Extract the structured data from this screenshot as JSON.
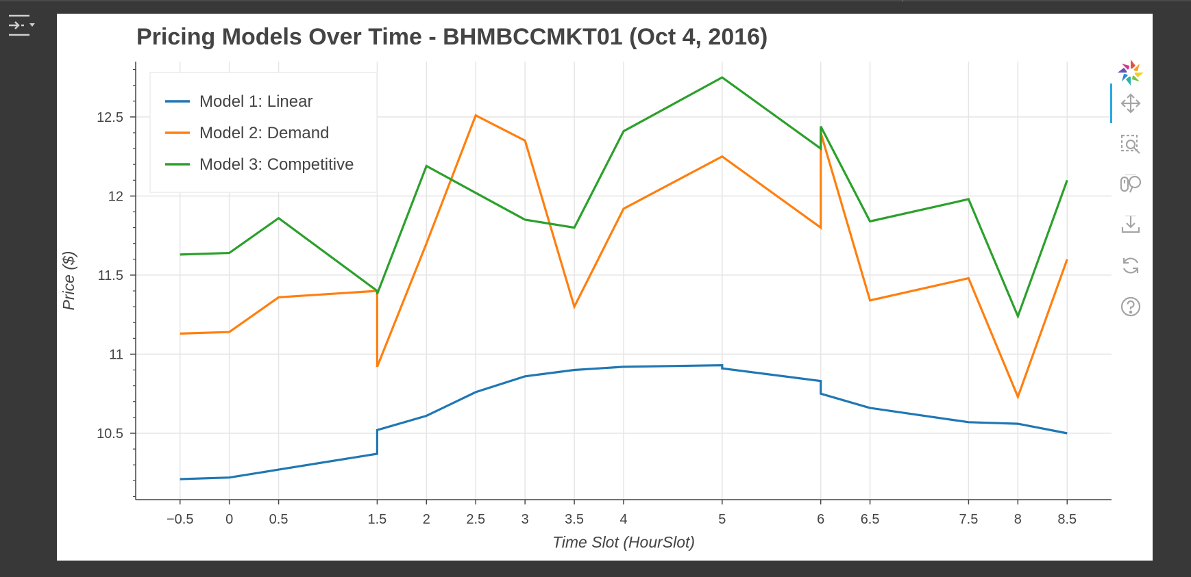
{
  "colors": {
    "background": "#383838",
    "card": "#ffffff",
    "grid": "#e5e5e5",
    "axis": "#444444",
    "linear": "#1f77b4",
    "demand": "#ff7f0e",
    "competitive": "#2ca02c",
    "toolbar_icon": "#a4a4a4",
    "toolbar_active": "#26aae1"
  },
  "sidebar_toggle": {
    "icon": "collapse-panel-icon"
  },
  "toolbar": {
    "tools": [
      {
        "name": "bokeh-logo",
        "icon": "bokeh-logo-icon"
      },
      {
        "name": "pan",
        "icon": "pan-icon",
        "active": true
      },
      {
        "name": "box-zoom",
        "icon": "box-zoom-icon"
      },
      {
        "name": "wheel-zoom",
        "icon": "wheel-zoom-icon"
      },
      {
        "name": "save",
        "icon": "save-icon"
      },
      {
        "name": "reset",
        "icon": "reset-icon"
      },
      {
        "name": "help",
        "icon": "help-icon"
      }
    ]
  },
  "chart_data": {
    "type": "line",
    "title": "Pricing Models Over Time - BHMBCCMKT01 (Oct 4, 2016)",
    "xlabel": "Time Slot (HourSlot)",
    "ylabel": "Price ($)",
    "xlim": [
      -0.95,
      8.95
    ],
    "ylim": [
      10.08,
      12.85
    ],
    "x_ticks": [
      -0.5,
      0,
      0.5,
      1.5,
      2,
      2.5,
      3,
      3.5,
      4,
      5,
      6,
      6.5,
      7.5,
      8,
      8.5
    ],
    "x_tick_labels": [
      "−0.5",
      "0",
      "0.5",
      "1.5",
      "2",
      "2.5",
      "3",
      "3.5",
      "4",
      "5",
      "6",
      "6.5",
      "7.5",
      "8",
      "8.5"
    ],
    "y_ticks": [
      10.5,
      11,
      11.5,
      12,
      12.5
    ],
    "y_tick_labels": [
      "10.5",
      "11",
      "11.5",
      "12",
      "12.5"
    ],
    "y_minor_step": 0.1,
    "grid": true,
    "legend_position": "top-left",
    "series": [
      {
        "name": "Model 1: Linear",
        "x": [
          -0.5,
          0,
          0.5,
          1.5,
          1.5,
          2,
          2.5,
          3,
          3.5,
          4,
          5,
          5,
          6,
          6,
          6.5,
          7.5,
          8,
          8.5
        ],
        "y": [
          10.21,
          10.22,
          10.27,
          10.37,
          10.52,
          10.61,
          10.76,
          10.86,
          10.9,
          10.92,
          10.93,
          10.91,
          10.83,
          10.75,
          10.66,
          10.57,
          10.56,
          10.5
        ]
      },
      {
        "name": "Model 2: Demand",
        "x": [
          -0.5,
          0,
          0.5,
          1.5,
          1.5,
          2,
          2.5,
          3,
          3.5,
          4,
          5,
          6,
          6,
          6.5,
          7.5,
          8,
          8.5
        ],
        "y": [
          11.13,
          11.14,
          11.36,
          11.4,
          10.92,
          11.7,
          12.51,
          12.35,
          11.3,
          11.92,
          12.25,
          11.8,
          12.4,
          11.34,
          11.48,
          10.73,
          11.6
        ]
      },
      {
        "name": "Model 3: Competitive",
        "x": [
          -0.5,
          0,
          0.5,
          1.5,
          1.5,
          2,
          2.5,
          3,
          3.5,
          4,
          5,
          6,
          6,
          6.5,
          7.5,
          8,
          8.5
        ],
        "y": [
          11.63,
          11.64,
          11.86,
          11.4,
          11.38,
          12.19,
          12.02,
          11.85,
          11.8,
          12.41,
          12.75,
          12.3,
          12.44,
          11.84,
          11.98,
          11.24,
          12.1
        ]
      }
    ]
  }
}
